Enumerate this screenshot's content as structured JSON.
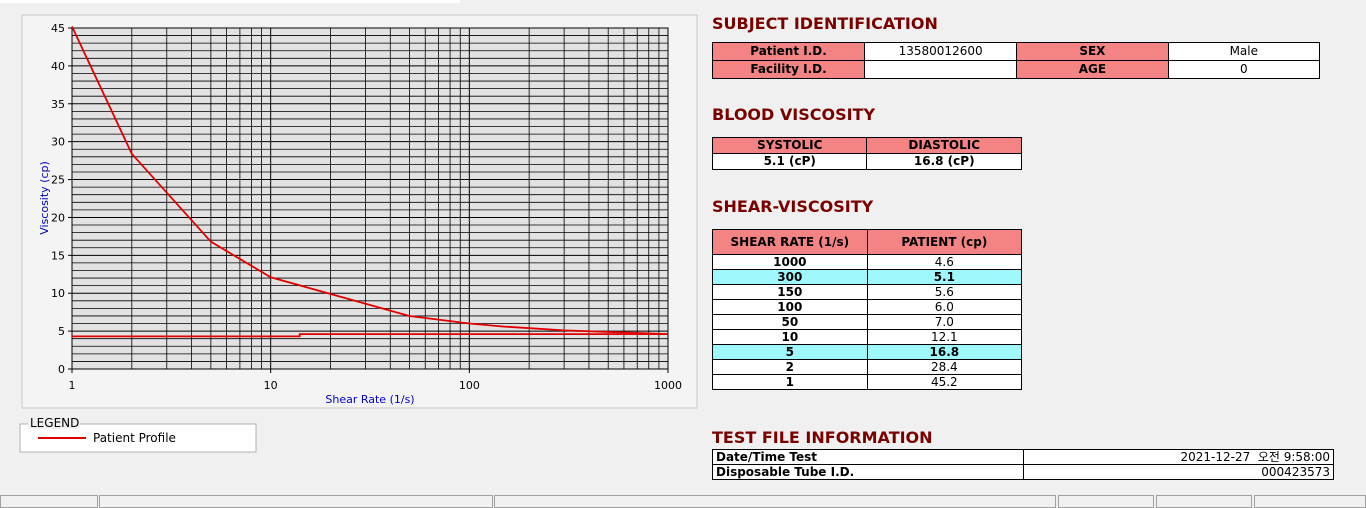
{
  "chart": {
    "type": "line",
    "xlabel": "Shear Rate (1/s)",
    "ylabel": "Viscosity (cp)",
    "xscale": "log",
    "xlim": [
      1,
      1000
    ],
    "xticks": [
      1,
      10,
      100,
      1000
    ],
    "ylim": [
      0,
      45
    ],
    "yticks": [
      0,
      5,
      10,
      15,
      20,
      25,
      30,
      35,
      40,
      45
    ],
    "grid": true,
    "minor_grid": true,
    "series": [
      {
        "name": "Patient Profile",
        "color": "#e00000",
        "x": [
          1,
          2,
          5,
          10,
          50,
          100,
          150,
          300,
          1000
        ],
        "values": [
          45.2,
          28.4,
          16.8,
          12.1,
          7.0,
          6.0,
          5.6,
          5.1,
          4.6
        ]
      },
      {
        "color": "#e00000",
        "x": [
          1,
          14,
          14,
          1000
        ],
        "values": [
          4.3,
          4.3,
          4.6,
          4.6
        ]
      }
    ],
    "legend_title": "LEGEND"
  },
  "subject": {
    "title": "SUBJECT IDENTIFICATION",
    "rows": [
      [
        "Patient I.D.",
        "13580012600",
        "SEX",
        "Male"
      ],
      [
        "Facility I.D.",
        null,
        "AGE",
        "0"
      ]
    ]
  },
  "blood": {
    "title": "BLOOD VISCOSITY",
    "headers": [
      "SYSTOLIC",
      "DIASTOLIC"
    ],
    "values": [
      "5.1 (cP)",
      "16.8 (cP)"
    ]
  },
  "shear": {
    "title": "SHEAR-VISCOSITY",
    "headers": [
      "SHEAR RATE (1/s)",
      "PATIENT (cp)"
    ],
    "highlight": [
      1,
      6
    ],
    "rows": [
      [
        "1000",
        "4.6"
      ],
      [
        "300",
        "5.1"
      ],
      [
        "150",
        "5.6"
      ],
      [
        "100",
        "6.0"
      ],
      [
        "50",
        "7.0"
      ],
      [
        "10",
        "12.1"
      ],
      [
        "5",
        "16.8"
      ],
      [
        "2",
        "28.4"
      ],
      [
        "1",
        "45.2"
      ]
    ]
  },
  "test_file": {
    "title": "TEST FILE INFORMATION",
    "rows": [
      [
        "Date/Time Test",
        "2021-12-27  오전 9:58:00"
      ],
      [
        "Disposable Tube I.D.",
        "000423573"
      ]
    ]
  }
}
